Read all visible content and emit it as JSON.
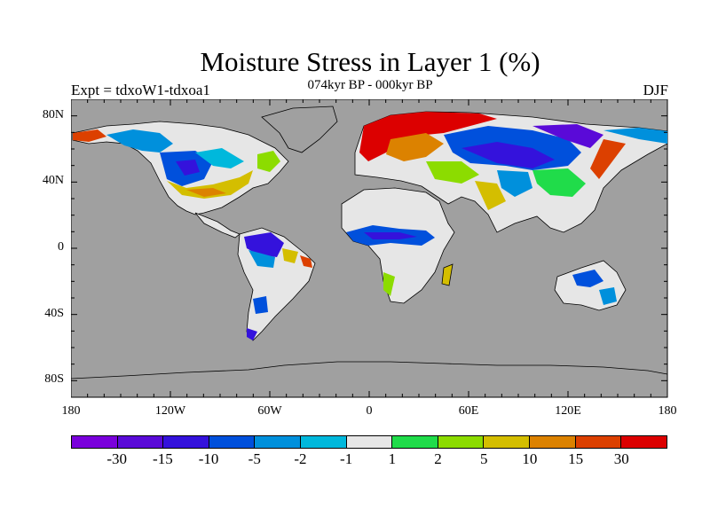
{
  "title": "Moisture Stress in Layer 1 (%)",
  "experiment": "Expt = tdxoW1-tdxoa1",
  "subtitle": "074kyr BP - 000kyr BP",
  "season": "DJF",
  "map": {
    "projection": "cylindrical equidistant",
    "lat_ticks": [
      "80N",
      "40N",
      "0",
      "40S",
      "80S"
    ],
    "lat_values": [
      80,
      40,
      0,
      -40,
      -80
    ],
    "lon_ticks": [
      "180",
      "120W",
      "60W",
      "0",
      "60E",
      "120E",
      "180"
    ],
    "lon_values": [
      -180,
      -120,
      -60,
      0,
      60,
      120,
      180
    ],
    "ocean_color": "#a0a0a0",
    "land_background_color": "#e6e6e6"
  },
  "colorbar": {
    "levels": [
      "-30",
      "-15",
      "-10",
      "-5",
      "-2",
      "-1",
      "1",
      "2",
      "5",
      "10",
      "15",
      "30"
    ],
    "colors": [
      "#7a00dc",
      "#5a0ad8",
      "#3412dc",
      "#0050dc",
      "#0090dc",
      "#00b8dc",
      "#e6e6e6",
      "#20dc4a",
      "#8cdc00",
      "#d4be00",
      "#dc8200",
      "#dc4000",
      "#dc0000"
    ]
  }
}
